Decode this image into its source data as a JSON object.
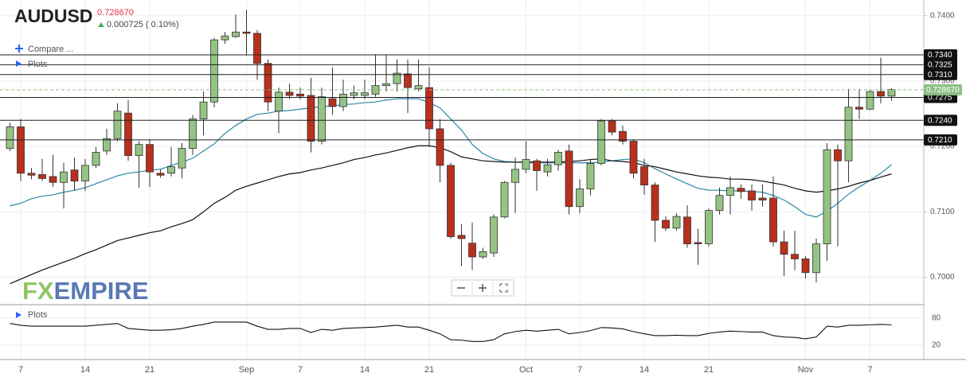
{
  "header": {
    "change": "0.000725 ( 0.10%)",
    "menu": [
      "Compare ...",
      "Plots"
    ]
  },
  "logo": {
    "fx": "FX",
    "empire": "EMPIRE"
  },
  "chart_data": {
    "type": "candlestick",
    "title": "AUDUSD",
    "last_price": {
      "value": 0.72867,
      "label": "0.728670"
    },
    "last_color": "#8cc084",
    "up_color": "#95c384",
    "down_color": "#b9301c",
    "ylim": [
      0.6958,
      0.7424
    ],
    "yticks": [
      {
        "value": 0.74,
        "label": "0.7400"
      },
      {
        "value": 0.73,
        "label": "0.7300"
      },
      {
        "value": 0.72,
        "label": "0.7200"
      },
      {
        "value": 0.71,
        "label": "0.7100"
      },
      {
        "value": 0.7,
        "label": "0.7000"
      }
    ],
    "levels": [
      {
        "value": 0.734,
        "label": "0.7340"
      },
      {
        "value": 0.7325,
        "label": "0.7325"
      },
      {
        "value": 0.731,
        "label": "0.7310"
      },
      {
        "value": 0.7275,
        "label": "0.7275"
      },
      {
        "value": 0.724,
        "label": "0.7240"
      },
      {
        "value": 0.721,
        "label": "0.7210"
      }
    ],
    "categories": [
      null,
      "7",
      null,
      null,
      null,
      null,
      null,
      "14",
      null,
      null,
      null,
      null,
      null,
      "21",
      null,
      null,
      null,
      null,
      null,
      null,
      null,
      null,
      "Sep",
      null,
      null,
      null,
      null,
      "7",
      null,
      null,
      null,
      null,
      null,
      "14",
      null,
      null,
      null,
      null,
      null,
      "21",
      null,
      null,
      null,
      null,
      null,
      null,
      null,
      null,
      "Oct",
      null,
      null,
      null,
      null,
      "7",
      null,
      null,
      null,
      null,
      null,
      "14",
      null,
      null,
      null,
      null,
      null,
      "21",
      null,
      null,
      null,
      null,
      null,
      null,
      null,
      null,
      "Nov",
      null,
      null,
      null,
      null,
      null,
      "7",
      null,
      null
    ],
    "open": [
      0.7197,
      0.723,
      0.7159,
      0.7157,
      0.7154,
      0.7145,
      0.7164,
      0.7147,
      0.7171,
      0.7193,
      0.7212,
      0.7251,
      0.7186,
      0.7203,
      0.7159,
      0.7159,
      0.7167,
      0.7197,
      0.7242,
      0.7268,
      0.7363,
      0.7368,
      0.7375,
      0.7373,
      0.7327,
      0.7254,
      0.7283,
      0.728,
      0.7278,
      0.7208,
      0.7273,
      0.7261,
      0.7278,
      0.7278,
      0.728,
      0.7293,
      0.7296,
      0.7311,
      0.7288,
      0.729,
      0.7227,
      0.7171,
      0.7064,
      0.7052,
      0.7031,
      0.7037,
      0.7092,
      0.7145,
      0.7165,
      0.7178,
      0.7161,
      0.7172,
      0.7193,
      0.7108,
      0.7135,
      0.7174,
      0.7239,
      0.7223,
      0.7208,
      0.7169,
      0.7141,
      0.7087,
      0.7075,
      0.7092,
      0.7053,
      0.7051,
      0.7102,
      0.7125,
      0.7136,
      0.7132,
      0.7121,
      0.7121,
      0.7054,
      0.7035,
      0.7028,
      0.7007,
      0.7051,
      0.7195,
      0.7178,
      0.726,
      0.7257,
      0.7284,
      0.7277
    ],
    "high": [
      0.7236,
      0.7242,
      0.7167,
      0.7181,
      0.7187,
      0.7175,
      0.7183,
      0.7181,
      0.7199,
      0.7227,
      0.7266,
      0.7271,
      0.7208,
      0.7211,
      0.7165,
      0.7199,
      0.7205,
      0.7248,
      0.7284,
      0.7366,
      0.7375,
      0.7402,
      0.7409,
      0.7378,
      0.7333,
      0.729,
      0.7296,
      0.729,
      0.7305,
      0.729,
      0.7321,
      0.7302,
      0.7293,
      0.7302,
      0.7341,
      0.7341,
      0.7333,
      0.7333,
      0.7333,
      0.7321,
      0.7242,
      0.7175,
      0.7081,
      0.7084,
      0.7045,
      0.7096,
      0.7147,
      0.7183,
      0.7208,
      0.7181,
      0.7181,
      0.7195,
      0.7203,
      0.715,
      0.7181,
      0.7242,
      0.7242,
      0.7232,
      0.7211,
      0.7181,
      0.7145,
      0.7093,
      0.7098,
      0.711,
      0.7074,
      0.7105,
      0.7137,
      0.7154,
      0.7142,
      0.7142,
      0.7142,
      0.7154,
      0.7071,
      0.7071,
      0.7032,
      0.7059,
      0.7205,
      0.7203,
      0.7288,
      0.7288,
      0.7287,
      0.7336,
      0.7289
    ],
    "low": [
      0.7193,
      0.7147,
      0.715,
      0.7147,
      0.7138,
      0.7105,
      0.7132,
      0.7132,
      0.7167,
      0.7187,
      0.7208,
      0.7178,
      0.7137,
      0.7138,
      0.7152,
      0.7154,
      0.7151,
      0.7187,
      0.7217,
      0.726,
      0.7357,
      0.7366,
      0.7339,
      0.7302,
      0.7254,
      0.722,
      0.7272,
      0.7272,
      0.7191,
      0.7203,
      0.7248,
      0.7254,
      0.7272,
      0.7272,
      0.7276,
      0.7284,
      0.7284,
      0.7251,
      0.7284,
      0.7199,
      0.7145,
      0.7059,
      0.7017,
      0.7011,
      0.7028,
      0.7031,
      0.709,
      0.7098,
      0.7159,
      0.7132,
      0.7154,
      0.7163,
      0.7096,
      0.7098,
      0.7125,
      0.7171,
      0.7217,
      0.7203,
      0.7151,
      0.7126,
      0.7054,
      0.7071,
      0.7071,
      0.7045,
      0.7019,
      0.7047,
      0.7096,
      0.7096,
      0.712,
      0.7102,
      0.7108,
      0.7047,
      0.7002,
      0.7011,
      0.6998,
      0.6992,
      0.7025,
      0.7047,
      0.7145,
      0.7242,
      0.7256,
      0.7266,
      0.727
    ],
    "close": [
      0.723,
      0.7159,
      0.7156,
      0.7151,
      0.7145,
      0.7161,
      0.7147,
      0.7171,
      0.7191,
      0.7212,
      0.7254,
      0.7186,
      0.7203,
      0.7161,
      0.7156,
      0.7169,
      0.7197,
      0.7242,
      0.7268,
      0.7363,
      0.7369,
      0.7375,
      0.7373,
      0.7327,
      0.7268,
      0.7283,
      0.7278,
      0.7277,
      0.7208,
      0.7276,
      0.7261,
      0.728,
      0.7282,
      0.7282,
      0.7293,
      0.7296,
      0.7312,
      0.729,
      0.7293,
      0.7227,
      0.7171,
      0.7062,
      0.7059,
      0.7031,
      0.7039,
      0.7092,
      0.7145,
      0.7165,
      0.718,
      0.7163,
      0.7172,
      0.7191,
      0.7108,
      0.7135,
      0.7174,
      0.7239,
      0.7222,
      0.7208,
      0.7159,
      0.7141,
      0.7087,
      0.7075,
      0.7093,
      0.7051,
      0.7051,
      0.7102,
      0.7125,
      0.7137,
      0.7131,
      0.7118,
      0.7118,
      0.7054,
      0.7035,
      0.7028,
      0.7007,
      0.7051,
      0.7195,
      0.7178,
      0.726,
      0.7257,
      0.7284,
      0.7277,
      0.7287
    ],
    "lines": [
      {
        "color": "#2a88a8",
        "values": [
          0.7109,
          0.7113,
          0.712,
          0.7124,
          0.7126,
          0.713,
          0.7133,
          0.7137,
          0.7143,
          0.7149,
          0.7155,
          0.7159,
          0.7161,
          0.7164,
          0.7165,
          0.7171,
          0.7176,
          0.7182,
          0.7193,
          0.7204,
          0.722,
          0.7232,
          0.7242,
          0.7249,
          0.7251,
          0.7254,
          0.7255,
          0.7257,
          0.7259,
          0.7261,
          0.7262,
          0.7264,
          0.7265,
          0.7267,
          0.7268,
          0.7271,
          0.7273,
          0.7273,
          0.7273,
          0.7267,
          0.7259,
          0.7242,
          0.7225,
          0.7203,
          0.7189,
          0.7181,
          0.7177,
          0.7176,
          0.7175,
          0.7175,
          0.7175,
          0.7175,
          0.7175,
          0.7175,
          0.7175,
          0.7176,
          0.7178,
          0.718,
          0.7181,
          0.7175,
          0.7166,
          0.7158,
          0.715,
          0.7143,
          0.7136,
          0.7133,
          0.7133,
          0.7132,
          0.7132,
          0.7131,
          0.713,
          0.7125,
          0.7118,
          0.7108,
          0.7096,
          0.7092,
          0.7101,
          0.7113,
          0.7127,
          0.7138,
          0.7148,
          0.7159,
          0.7172
        ]
      },
      {
        "color": "#111111",
        "values": [
          0.699,
          0.6997,
          0.7004,
          0.7011,
          0.7017,
          0.7023,
          0.7029,
          0.7036,
          0.7042,
          0.7049,
          0.7056,
          0.706,
          0.7064,
          0.7068,
          0.7071,
          0.7077,
          0.7082,
          0.7088,
          0.71,
          0.7113,
          0.7122,
          0.7133,
          0.7139,
          0.7144,
          0.7149,
          0.7154,
          0.7158,
          0.716,
          0.7164,
          0.7167,
          0.7171,
          0.7175,
          0.718,
          0.7183,
          0.7187,
          0.719,
          0.7194,
          0.7198,
          0.7201,
          0.7201,
          0.7198,
          0.7192,
          0.7184,
          0.7181,
          0.7178,
          0.7177,
          0.7176,
          0.7176,
          0.7176,
          0.7176,
          0.7176,
          0.7176,
          0.7177,
          0.7178,
          0.718,
          0.7181,
          0.7178,
          0.7177,
          0.7175,
          0.7171,
          0.7169,
          0.7165,
          0.7161,
          0.7158,
          0.7155,
          0.7153,
          0.7152,
          0.715,
          0.715,
          0.7149,
          0.7147,
          0.7144,
          0.7141,
          0.7136,
          0.7132,
          0.713,
          0.7132,
          0.7135,
          0.7139,
          0.7144,
          0.7148,
          0.7153,
          0.7158
        ]
      }
    ],
    "indicator": {
      "title": "Plots",
      "color": "#111111",
      "ylim": [
        -12,
        108
      ],
      "yticks": [
        80,
        20
      ],
      "values": [
        68,
        64,
        62,
        62,
        62,
        62,
        62,
        62,
        64,
        66,
        68,
        57,
        55,
        53,
        53,
        54,
        57,
        62,
        66,
        71,
        71,
        71,
        71,
        62,
        55,
        55,
        57,
        57,
        48,
        55,
        53,
        57,
        58,
        59,
        60,
        62,
        64,
        60,
        60,
        53,
        45,
        32,
        31,
        28,
        28,
        32,
        45,
        50,
        53,
        51,
        53,
        55,
        45,
        48,
        52,
        59,
        58,
        56,
        50,
        45,
        41,
        41,
        42,
        41,
        41,
        46,
        49,
        51,
        50,
        49,
        49,
        41,
        38,
        37,
        34,
        38,
        62,
        60,
        64,
        64,
        65,
        66,
        65
      ]
    }
  }
}
